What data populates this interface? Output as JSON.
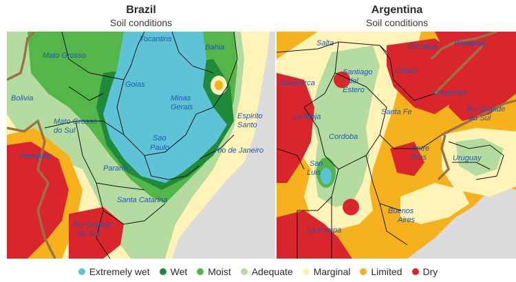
{
  "brazil": {
    "title": "Brazil",
    "subtitle": "Soil conditions",
    "labels": {
      "tocantins": "Tocantins",
      "bahia": "Bahia",
      "mato_grosso": "Mato Grosso",
      "goias": "Goias",
      "minas": "Minas",
      "gerais": "Gerais",
      "bolivia": "Bolivia",
      "espirito": "Espirito",
      "santo": "Santo",
      "mgs1": "Mato Grosso",
      "mgs2": "do Sul",
      "sao": "Sao",
      "paulo": "Paulo",
      "rio_janeiro": "Rio de Janeiro",
      "paraguay": "Paraguay",
      "parana": "Parana",
      "santa_catarina": "Santa Catarina",
      "rgs1": "Rio Grande",
      "rgs2": "do Sul"
    }
  },
  "argentina": {
    "title": "Argentina",
    "subtitle": "Soil conditions",
    "labels": {
      "salta": "Salta",
      "formosa": "Formosa",
      "paraguay": "Paraguay",
      "catamarca": "Catamarca",
      "santiago": "Santiago",
      "del": "del",
      "estero": "Estero",
      "chaco": "Chaco",
      "corrientes": "Corrientes",
      "la_rioja": "La Rioja",
      "santa_fe": "Santa Fe",
      "rgs1": "Rio Grande",
      "rgs2": "do Sul",
      "cordoba": "Cordoba",
      "entre": "Entre",
      "rios": "Rios",
      "san": "San",
      "luis": "Luis",
      "uruguay": "Uruguay",
      "buenos": "Buenos",
      "aires": "Aires",
      "la_pampa": "La Pampa"
    }
  },
  "legend": [
    {
      "label": "Extremely wet",
      "color": "#5fc3d7"
    },
    {
      "label": "Wet",
      "color": "#1f8a3a"
    },
    {
      "label": "Moist",
      "color": "#54b548"
    },
    {
      "label": "Adequate",
      "color": "#b5dca0"
    },
    {
      "label": "Marginal",
      "color": "#fff3b8"
    },
    {
      "label": "Limited",
      "color": "#f5b21c"
    },
    {
      "label": "Dry",
      "color": "#d8262c"
    }
  ],
  "colors": {
    "ocean": "#dcdcdc",
    "border": "#9a7440",
    "label": "#1f56b3"
  }
}
